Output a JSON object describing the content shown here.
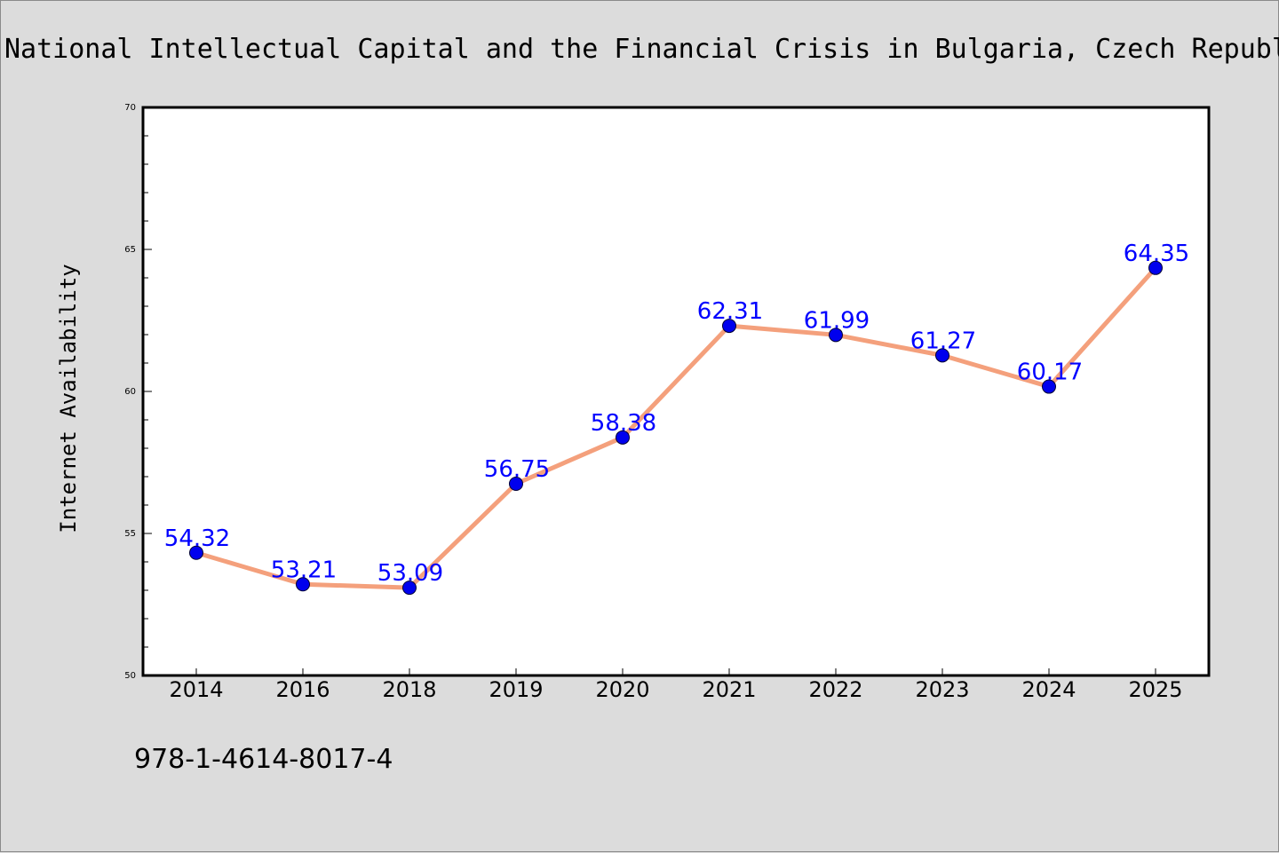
{
  "chart_data": {
    "type": "line",
    "title": "National Intellectual Capital and the Financial Crisis in Bulgaria, Czech Republic, Hungary, Romania, and Poland",
    "xlabel": "",
    "ylabel": "Internet Availability",
    "categories": [
      "2014",
      "2016",
      "2018",
      "2019",
      "2020",
      "2021",
      "2022",
      "2023",
      "2024",
      "2025"
    ],
    "series": [
      {
        "values": [
          54.32,
          53.21,
          53.09,
          56.75,
          58.38,
          62.31,
          61.99,
          61.27,
          60.17,
          64.35
        ]
      }
    ],
    "data_labels": [
      "54.32",
      "53.21",
      "53.09",
      "56.75",
      "58.38",
      "62.31",
      "61.99",
      "61.27",
      "60.17",
      "64.35"
    ],
    "ylim": [
      50,
      70
    ],
    "yticks": [
      50,
      55,
      60,
      65,
      70
    ],
    "grid": false,
    "line_color": "#f4a07c",
    "marker_color": "#0000ee",
    "label_color": "#0000ff"
  },
  "footer": {
    "text": "978-1-4614-8017-4"
  }
}
